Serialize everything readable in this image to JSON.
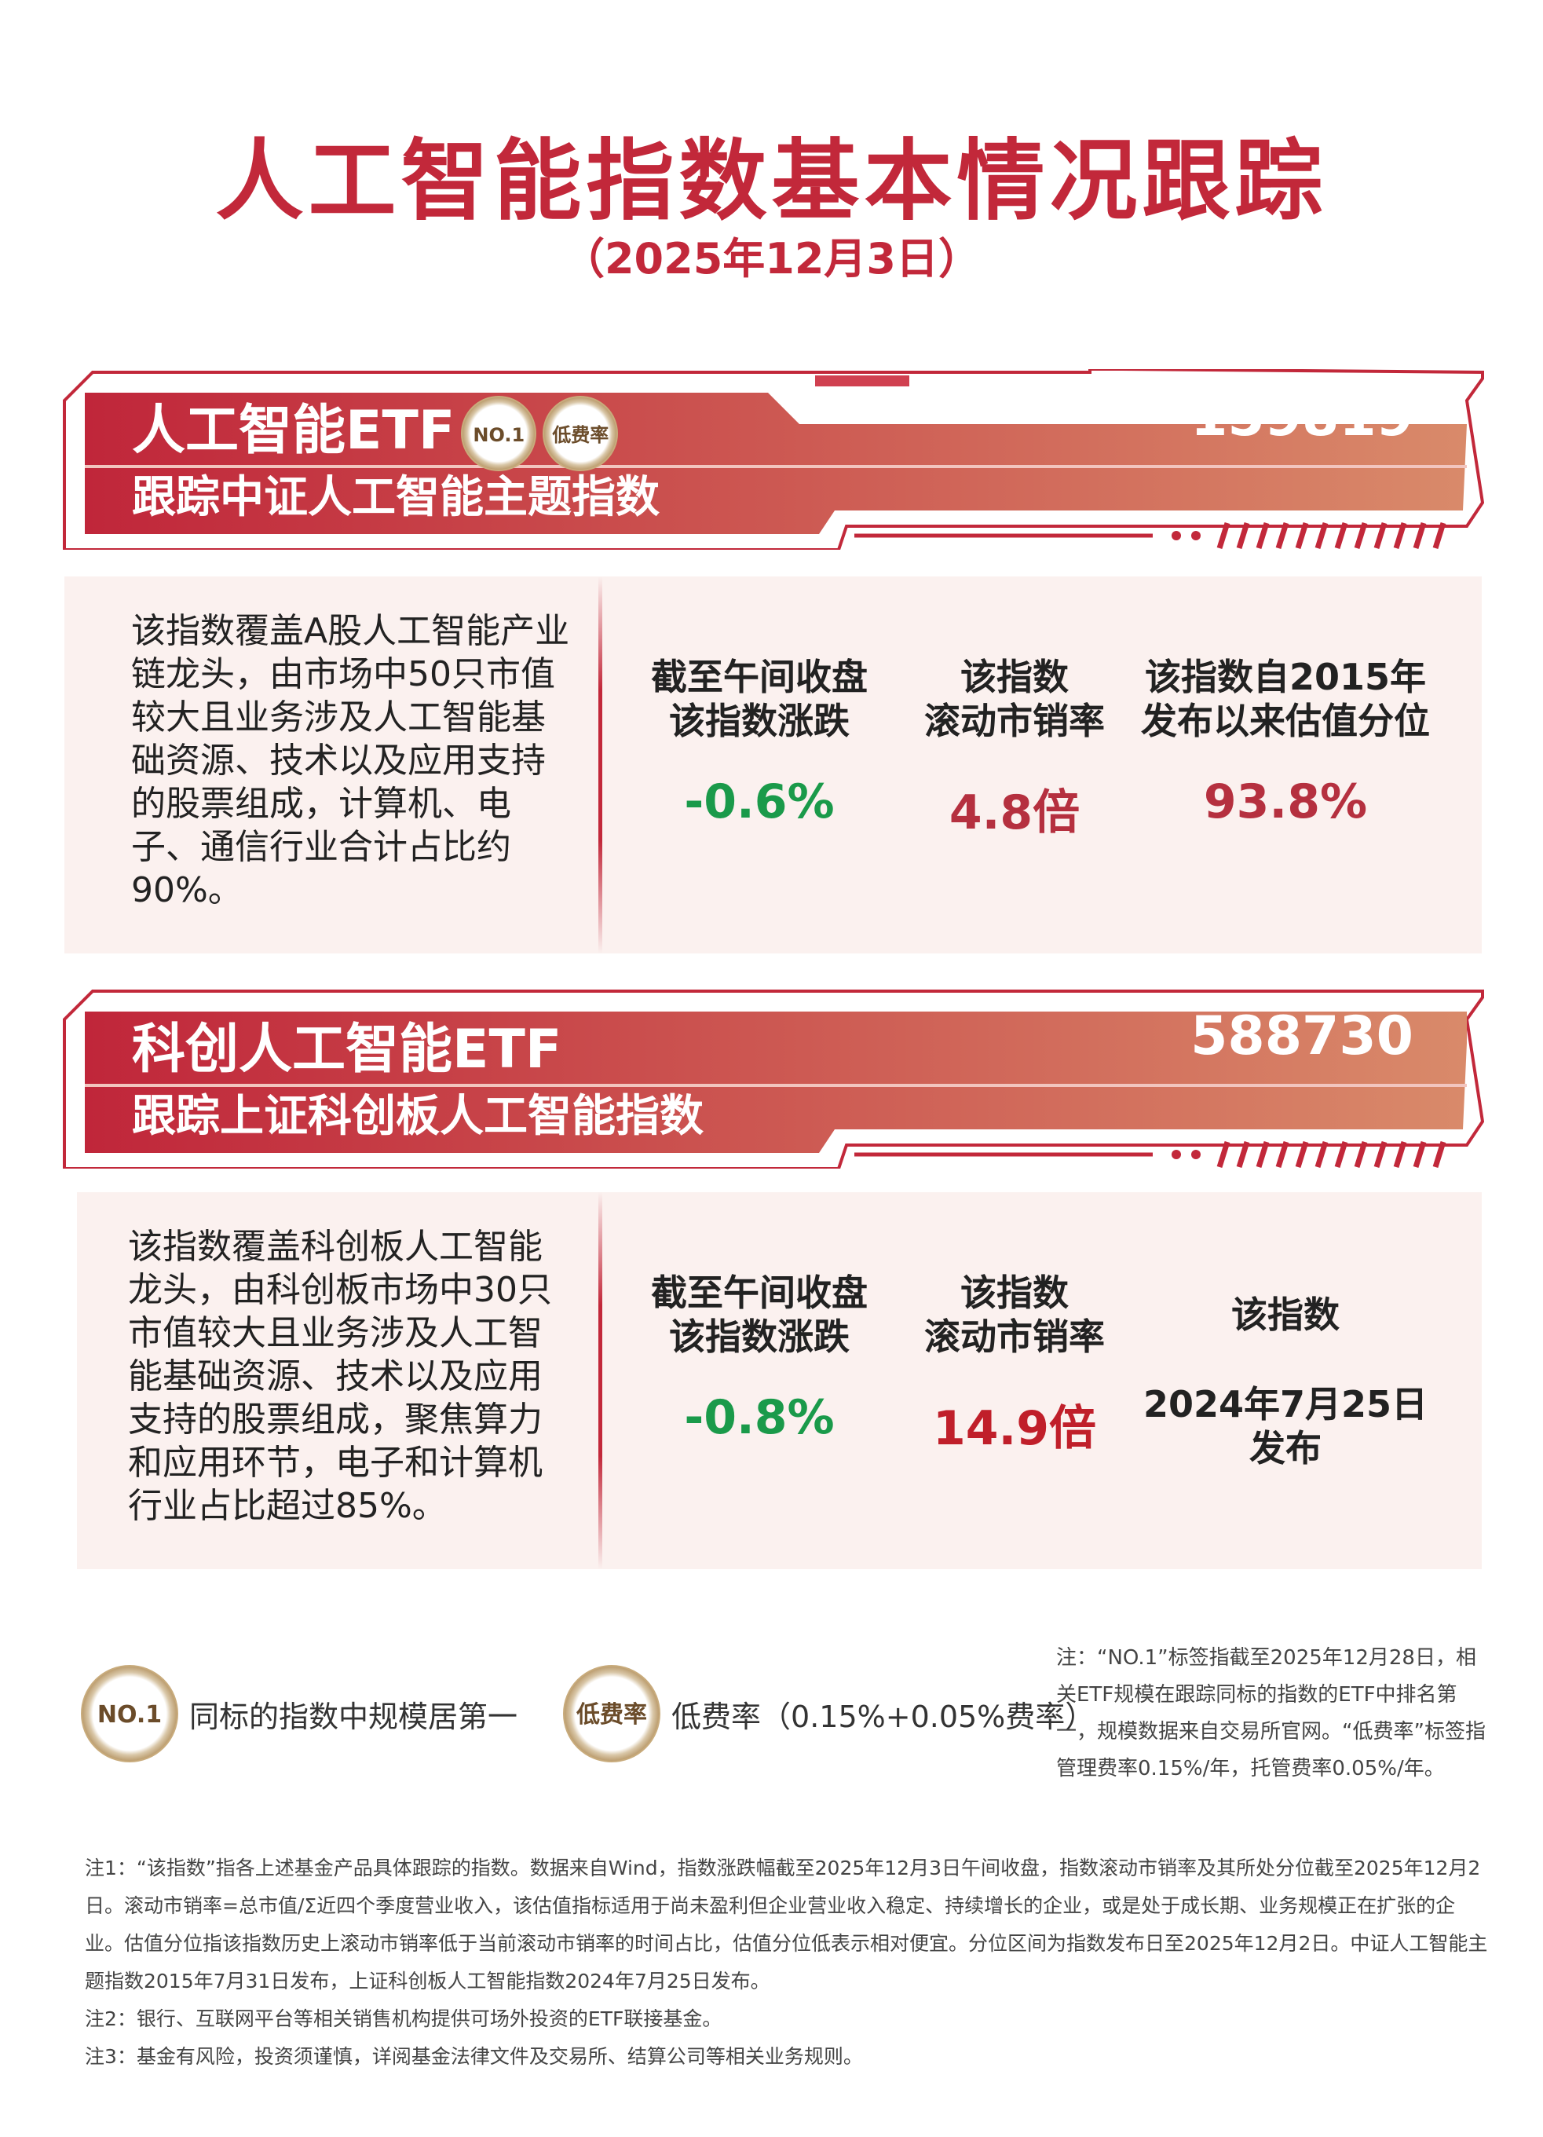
{
  "header": {
    "title": "人工智能指数基本情况跟踪",
    "date": "（2025年12月3日）"
  },
  "colors": {
    "brand_red": "#c2283a",
    "banner_end": "#d98a6a",
    "positive_green": "#1a9a4a",
    "value_red": "#b5303f",
    "card_bg": "#fbf1ef"
  },
  "funds": [
    {
      "name": "人工智能ETF",
      "badges": [
        "NO.1",
        "低费率"
      ],
      "code": "159819",
      "tracking": "跟踪中证人工智能主题指数",
      "description": "该指数覆盖A股人工智能产业链龙头，由市场中50只市值较大且业务涉及人工智能基础资源、技术以及应用支持的股票组成，计算机、电子、通信行业合计占比约90%。",
      "metrics": [
        {
          "label1": "截至午间收盘",
          "label2": "该指数涨跌",
          "value": "-0.6%"
        },
        {
          "label1": "该指数",
          "label2": "滚动市销率",
          "value": "4.8倍"
        },
        {
          "label1": "该指数自2015年",
          "label2": "发布以来估值分位",
          "value": "93.8%"
        }
      ]
    },
    {
      "name": "科创人工智能ETF",
      "code": "588730",
      "tracking": "跟踪上证科创板人工智能指数",
      "description": "该指数覆盖科创板人工智能龙头，由科创板市场中30只市值较大且业务涉及人工智能基础资源、技术以及应用支持的股票组成，聚焦算力和应用环节，电子和计算机行业占比超过85%。",
      "metrics": [
        {
          "label1": "截至午间收盘",
          "label2": "该指数涨跌",
          "value": "-0.8%"
        },
        {
          "label1": "该指数",
          "label2": "滚动市销率",
          "value": "14.9倍"
        },
        {
          "label1": "该指数",
          "label2": "",
          "value": "2024年7月25日",
          "value2": "发布"
        }
      ]
    }
  ],
  "legend": {
    "no1_badge": "NO.1",
    "no1_text": "同标的指数中规模居第一",
    "fee_badge": "低费率",
    "fee_text": "低费率（0.15%+0.05%费率）"
  },
  "note": "注：“NO.1”标签指截至2025年12月28日，相关ETF规模在跟踪同标的指数的ETF中排名第一，规模数据来自交易所官网。“低费率”标签指管理费率0.15%/年，托管费率0.05%/年。",
  "footnotes": [
    "注1：“该指数”指各上述基金产品具体跟踪的指数。数据来自Wind，指数涨跌幅截至2025年12月3日午间收盘，指数滚动市销率及其所处分位截至2025年12月2日。滚动市销率=总市值/Σ近四个季度营业收入，该估值指标适用于尚未盈利但企业营业收入稳定、持续增长的企业，或是处于成长期、业务规模正在扩张的企业。估值分位指该指数历史上滚动市销率低于当前滚动市销率的时间占比，估值分位低表示相对便宜。分位区间为指数发布日至2025年12月2日。中证人工智能主题指数2015年7月31日发布，上证科创板人工智能指数2024年7月25日发布。",
    "注2：银行、互联网平台等相关销售机构提供可场外投资的ETF联接基金。",
    "注3：基金有风险，投资须谨慎，详阅基金法律文件及交易所、结算公司等相关业务规则。"
  ]
}
